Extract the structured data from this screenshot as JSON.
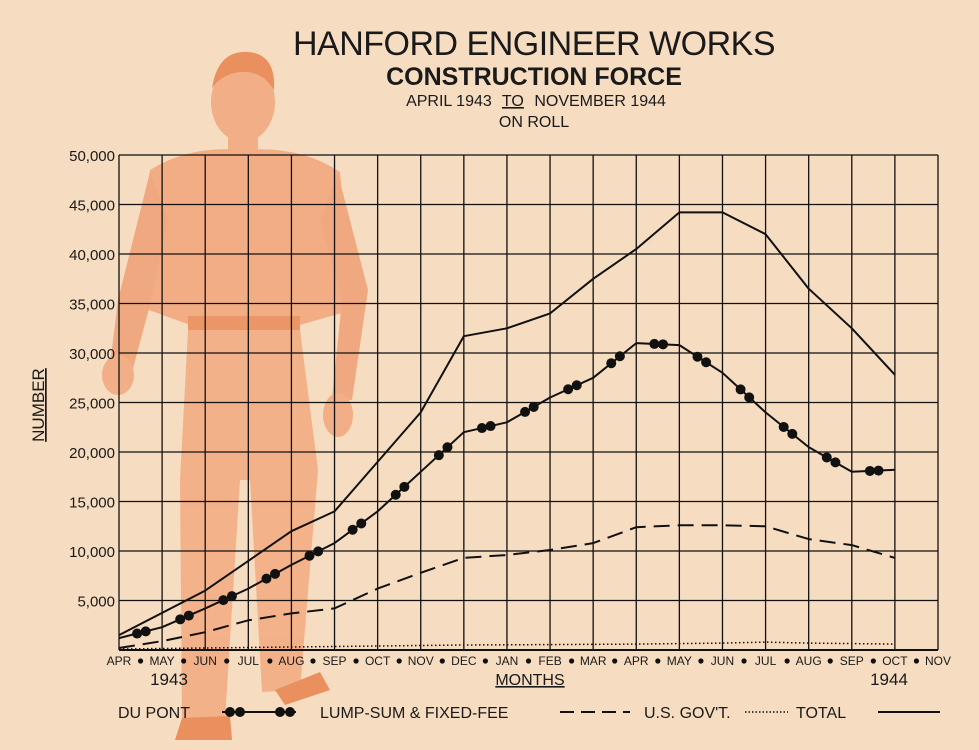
{
  "chart_data": {
    "type": "line",
    "title": "HANFORD ENGINEER WORKS",
    "subtitle": "CONSTRUCTION FORCE",
    "subtitle2_pre": "APRIL 1943",
    "subtitle2_mid": "TO",
    "subtitle2_post": "NOVEMBER 1944",
    "subtitle3": "ON ROLL",
    "ylabel": "NUMBER",
    "xlabel": "MONTHS",
    "year_start": "1943",
    "year_end": "1944",
    "ylim": [
      0,
      50000
    ],
    "yticks": [
      "5,000",
      "10,000",
      "15,000",
      "20,000",
      "25,000",
      "30,000",
      "35,000",
      "40,000",
      "45,000",
      "50,000"
    ],
    "categories": [
      "APR",
      "MAY",
      "JUN",
      "JUL",
      "AUG",
      "SEP",
      "OCT",
      "NOV",
      "DEC",
      "JAN",
      "FEB",
      "MAR",
      "APR",
      "MAY",
      "JUN",
      "JUL",
      "AUG",
      "SEP",
      "OCT",
      "NOV"
    ],
    "x": [
      0,
      1,
      2,
      3,
      4,
      5,
      6,
      7,
      8,
      9,
      10,
      11,
      12,
      13,
      14,
      15,
      16,
      17,
      18,
      19
    ],
    "series": [
      {
        "name": "TOTAL",
        "style": "solid",
        "x": [
          0,
          2,
          4,
          5,
          6,
          7,
          8,
          9,
          10,
          11,
          12,
          13,
          14,
          15,
          16,
          17,
          18
        ],
        "values": [
          1500,
          6000,
          12000,
          14000,
          19000,
          24000,
          31700,
          32500,
          34000,
          37500,
          40500,
          44200,
          44200,
          42000,
          36500,
          32500,
          27800
        ]
      },
      {
        "name": "LUMP-SUM & FIXED-FEE",
        "style": "dots",
        "x": [
          0,
          1,
          2,
          3,
          4,
          5,
          6,
          7,
          8,
          9,
          10,
          11,
          12,
          13,
          14,
          15,
          16,
          17,
          18
        ],
        "values": [
          1200,
          2300,
          4200,
          6200,
          8600,
          10800,
          14000,
          18000,
          22000,
          23000,
          25500,
          27500,
          31000,
          30800,
          28000,
          24000,
          20500,
          18000,
          18200
        ]
      },
      {
        "name": "U.S. GOV'T.",
        "style": "dashed",
        "x": [
          0,
          1,
          2,
          3,
          4,
          5,
          6,
          7,
          8,
          9,
          10,
          11,
          12,
          13,
          14,
          15,
          16,
          17,
          18
        ],
        "values": [
          200,
          900,
          1800,
          3000,
          3700,
          4200,
          6200,
          7800,
          9300,
          9600,
          10100,
          10800,
          12400,
          12600,
          12600,
          12500,
          11200,
          10600,
          9300
        ]
      },
      {
        "name": "DU PONT",
        "style": "dotted",
        "x": [
          0,
          2,
          4,
          6,
          8,
          10,
          12,
          14,
          15,
          16,
          18
        ],
        "values": [
          100,
          200,
          300,
          400,
          500,
          550,
          600,
          700,
          800,
          700,
          600
        ]
      }
    ],
    "grid": true,
    "legend_position": "bottom",
    "colors": {
      "line": "#111111",
      "background": "#f6dcc0",
      "figure": "#f19a6c"
    }
  }
}
